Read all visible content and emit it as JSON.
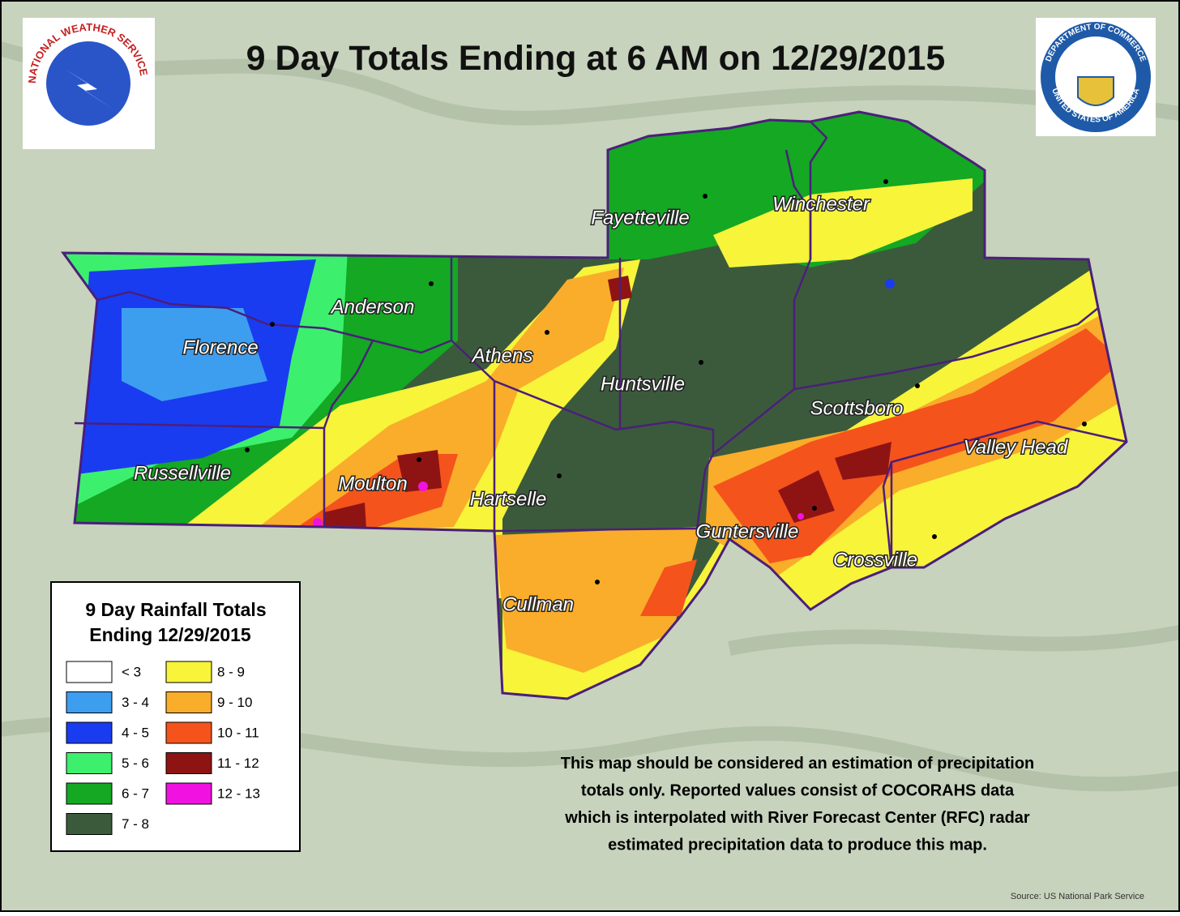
{
  "header": {
    "title": "9 Day Totals Ending at 6 AM on 12/29/2015"
  },
  "logos": {
    "nws": "NATIONAL WEATHER SERVICE",
    "doc_top": "DEPARTMENT OF COMMERCE",
    "doc_bottom": "UNITED STATES OF AMERICA"
  },
  "cities": [
    {
      "label": "Fayetteville"
    },
    {
      "label": "Winchester"
    },
    {
      "label": "Anderson"
    },
    {
      "label": "Florence"
    },
    {
      "label": "Athens"
    },
    {
      "label": "Huntsville"
    },
    {
      "label": "Scottsboro"
    },
    {
      "label": "Valley Head"
    },
    {
      "label": "Russellville"
    },
    {
      "label": "Moulton"
    },
    {
      "label": "Hartselle"
    },
    {
      "label": "Guntersville"
    },
    {
      "label": "Crossville"
    },
    {
      "label": "Cullman"
    }
  ],
  "legend": {
    "title_line1": "9 Day Rainfall Totals",
    "title_line2": "Ending 12/29/2015",
    "items": [
      {
        "label": "< 3",
        "color": "#ffffff"
      },
      {
        "label": "3 - 4",
        "color": "#3d9ef0"
      },
      {
        "label": "4 - 5",
        "color": "#1a3cf0"
      },
      {
        "label": "5 - 6",
        "color": "#3cf06e"
      },
      {
        "label": "6 - 7",
        "color": "#14a823"
      },
      {
        "label": "7 - 8",
        "color": "#3b5a3c"
      },
      {
        "label": "8 - 9",
        "color": "#f7f43a"
      },
      {
        "label": "9 - 10",
        "color": "#f9ad2a"
      },
      {
        "label": "10 - 11",
        "color": "#f5531c"
      },
      {
        "label": "11 - 12",
        "color": "#8e1414"
      },
      {
        "label": "12 - 13",
        "color": "#f012e0"
      }
    ]
  },
  "note": [
    "This map should be considered an estimation of precipitation",
    "totals only.  Reported values consist of COCORAHS data",
    "which is interpolated with River Forecast Center (RFC) radar",
    "estimated precipitation data to produce this map."
  ],
  "source": "Source: US National Park Service"
}
